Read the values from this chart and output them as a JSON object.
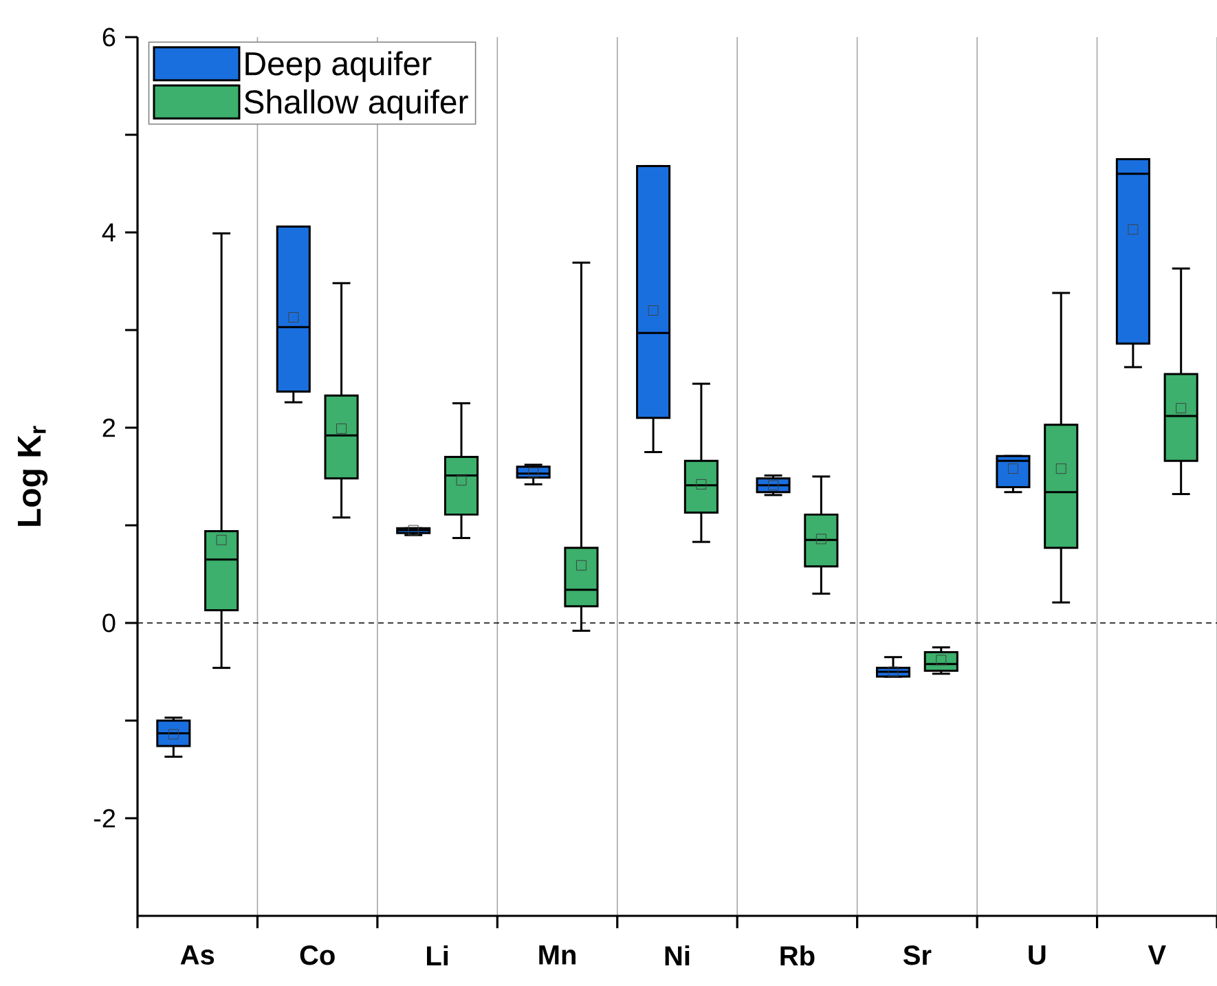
{
  "chart_data": {
    "type": "box",
    "ylabel": "Log K$_{r}$",
    "categories": [
      "As",
      "Co",
      "Li",
      "Mn",
      "Ni",
      "Rb",
      "Sr",
      "U",
      "V"
    ],
    "series": [
      {
        "name": "Deep aquifer",
        "color": "#1a6fdf",
        "boxes": [
          {
            "low": -1.37,
            "q1": -1.26,
            "median": -1.13,
            "q3": -1.0,
            "high": -0.97,
            "mean": -1.14
          },
          {
            "low": 2.26,
            "q1": 2.37,
            "median": 3.03,
            "q3": 4.06,
            "high": 4.06,
            "mean": 3.13
          },
          {
            "low": 0.9,
            "q1": 0.92,
            "median": 0.95,
            "q3": 0.97,
            "high": 0.97,
            "mean": 0.95
          },
          {
            "low": 1.42,
            "q1": 1.49,
            "median": 1.53,
            "q3": 1.6,
            "high": 1.62,
            "mean": 1.54
          },
          {
            "low": 1.75,
            "q1": 2.1,
            "median": 2.97,
            "q3": 4.68,
            "high": 4.68,
            "mean": 3.2
          },
          {
            "low": 1.31,
            "q1": 1.34,
            "median": 1.41,
            "q3": 1.48,
            "high": 1.51,
            "mean": 1.41
          },
          {
            "low": -0.55,
            "q1": -0.55,
            "median": -0.5,
            "q3": -0.46,
            "high": -0.35,
            "mean": -0.5
          },
          {
            "low": 1.34,
            "q1": 1.39,
            "median": 1.66,
            "q3": 1.71,
            "high": 1.71,
            "mean": 1.58
          },
          {
            "low": 2.62,
            "q1": 2.86,
            "median": 4.6,
            "q3": 4.75,
            "high": 4.75,
            "mean": 4.03
          }
        ]
      },
      {
        "name": "Shallow aquifer",
        "color": "#3cb06c",
        "boxes": [
          {
            "low": -0.46,
            "q1": 0.13,
            "median": 0.65,
            "q3": 0.94,
            "high": 3.99,
            "mean": 0.85
          },
          {
            "low": 1.08,
            "q1": 1.48,
            "median": 1.92,
            "q3": 2.33,
            "high": 3.48,
            "mean": 1.99
          },
          {
            "low": 0.87,
            "q1": 1.11,
            "median": 1.51,
            "q3": 1.7,
            "high": 2.25,
            "mean": 1.46
          },
          {
            "low": -0.08,
            "q1": 0.17,
            "median": 0.34,
            "q3": 0.77,
            "high": 3.69,
            "mean": 0.59
          },
          {
            "low": 0.83,
            "q1": 1.13,
            "median": 1.41,
            "q3": 1.66,
            "high": 2.45,
            "mean": 1.42
          },
          {
            "low": 0.3,
            "q1": 0.58,
            "median": 0.85,
            "q3": 1.11,
            "high": 1.5,
            "mean": 0.86
          },
          {
            "low": -0.52,
            "q1": -0.49,
            "median": -0.42,
            "q3": -0.3,
            "high": -0.25,
            "mean": -0.38
          },
          {
            "low": 0.21,
            "q1": 0.77,
            "median": 1.34,
            "q3": 2.03,
            "high": 3.38,
            "mean": 1.58
          },
          {
            "low": 1.32,
            "q1": 1.66,
            "median": 2.12,
            "q3": 2.55,
            "high": 3.63,
            "mean": 2.2
          }
        ]
      }
    ],
    "ylim": [
      -3,
      6
    ],
    "yticks": [
      -2,
      {
        "value": -1,
        "label": null
      },
      0,
      {
        "value": 1,
        "label": null
      },
      2,
      {
        "value": 3,
        "label": null
      },
      4,
      {
        "value": 5,
        "label": null
      },
      6
    ],
    "ref_lines": [
      {
        "axis": "y",
        "value": 0,
        "line_style": "dashed"
      }
    ],
    "grid": "x",
    "legend": "top left",
    "marker": "square"
  }
}
